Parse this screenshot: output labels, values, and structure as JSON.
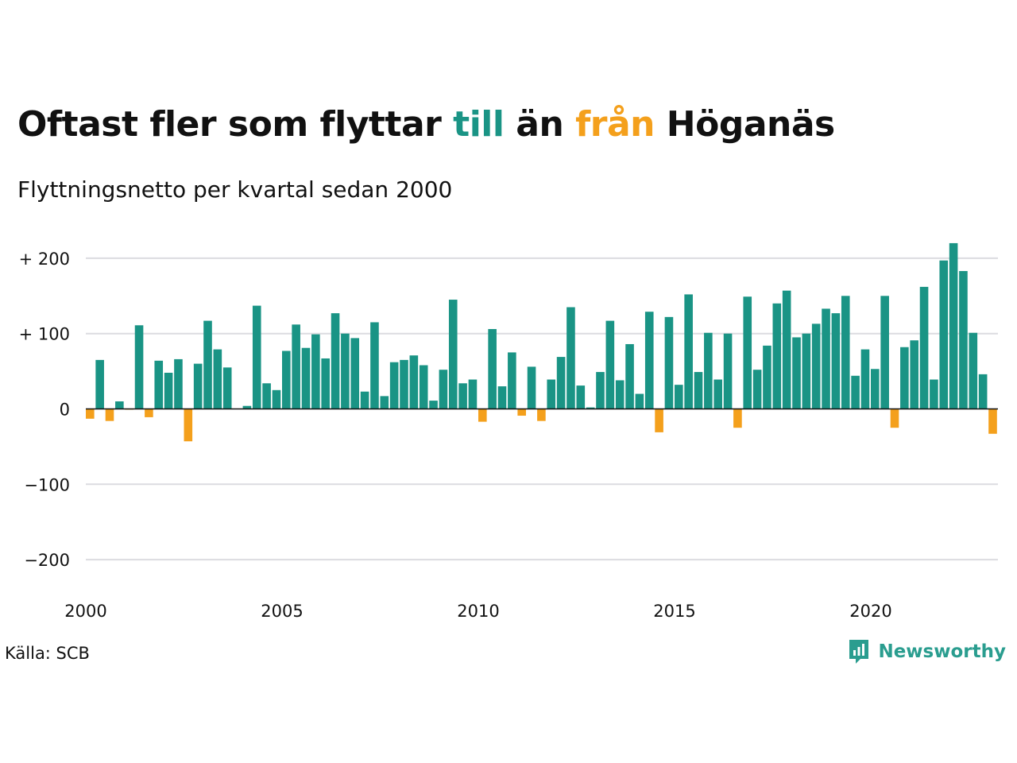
{
  "title": {
    "part1": "Oftast fler som flyttar ",
    "word_in": "till",
    "part2": " än ",
    "word_out": "från",
    "part3": " Höganäs"
  },
  "subtitle": "Flyttningsnetto per kvartal sedan 2000",
  "source": "Källa: SCB",
  "brand": "Newsworthy",
  "colors": {
    "positive": "#1a9485",
    "negative": "#f4a01c",
    "grid": "#dcdce0",
    "axis": "#111111",
    "brand": "#2a9d8f"
  },
  "chart_data": {
    "type": "bar",
    "start_year": 2000,
    "periods_per_year": 4,
    "ylim": [
      -240,
      240
    ],
    "y_ticks": [
      -200,
      -100,
      0,
      100,
      200
    ],
    "y_tick_labels": [
      "−200",
      "−100",
      "0",
      "+ 100",
      "+ 200"
    ],
    "x_ticks": [
      "2000",
      "2005",
      "2010",
      "2015",
      "2020"
    ],
    "grid": true,
    "values": [
      -13,
      65,
      -16,
      10,
      -1,
      111,
      -11,
      64,
      48,
      66,
      -43,
      60,
      117,
      79,
      55,
      0,
      4,
      137,
      34,
      25,
      77,
      112,
      81,
      99,
      67,
      127,
      100,
      94,
      23,
      115,
      17,
      62,
      65,
      71,
      58,
      11,
      52,
      145,
      34,
      39,
      -17,
      106,
      30,
      75,
      -9,
      56,
      -16,
      39,
      69,
      135,
      31,
      2,
      49,
      117,
      38,
      86,
      20,
      129,
      -31,
      122,
      32,
      152,
      49,
      101,
      39,
      100,
      -25,
      149,
      52,
      84,
      140,
      157,
      95,
      100,
      113,
      133,
      127,
      150,
      44,
      79,
      53,
      150,
      -25,
      82,
      91,
      162,
      39,
      197,
      220,
      183,
      101,
      46,
      -33
    ]
  }
}
